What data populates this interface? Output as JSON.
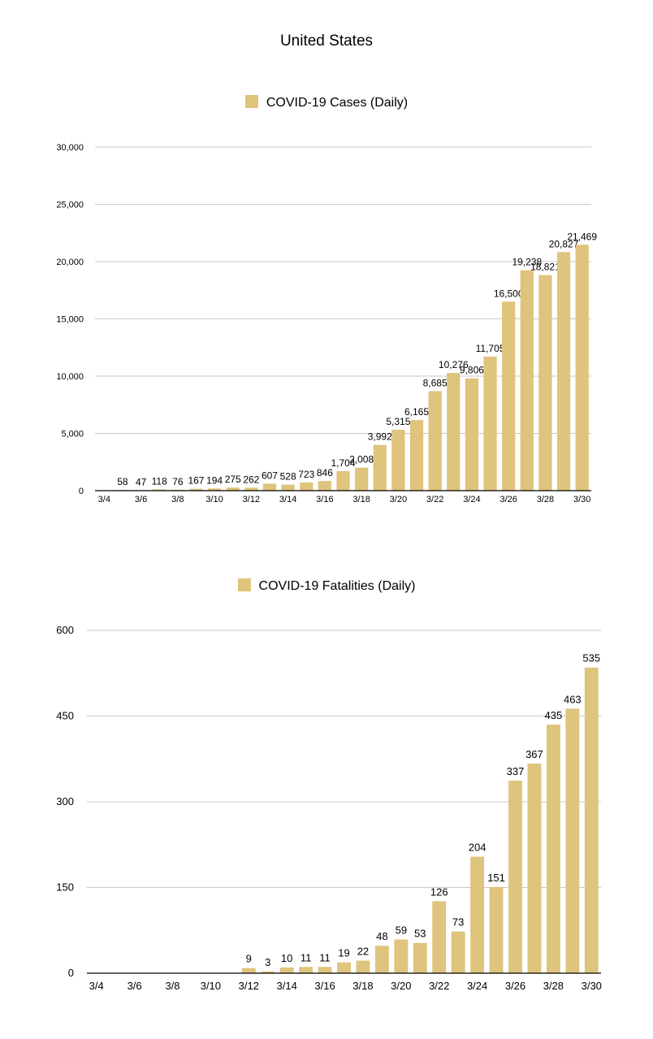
{
  "title": "United States",
  "colors": {
    "bar": "#dfc47d",
    "grid": "#c8c8c8",
    "axis": "#000000"
  },
  "chart_data": [
    {
      "type": "bar",
      "title": "United States",
      "legend": "COVID-19 Cases (Daily)",
      "legend_position": "top",
      "grid": true,
      "ylim": [
        0,
        30000
      ],
      "yticks": [
        "0",
        "5,000",
        "10,000",
        "15,000",
        "20,000",
        "25,000",
        "30,000"
      ],
      "categories": [
        "3/4",
        "3/5",
        "3/6",
        "3/7",
        "3/8",
        "3/9",
        "3/10",
        "3/11",
        "3/12",
        "3/13",
        "3/14",
        "3/15",
        "3/16",
        "3/17",
        "3/18",
        "3/19",
        "3/20",
        "3/21",
        "3/22",
        "3/23",
        "3/24",
        "3/25",
        "3/26",
        "3/27",
        "3/28",
        "3/29",
        "3/30"
      ],
      "xtick_labels": [
        "3/4",
        "",
        "3/6",
        "",
        "3/8",
        "",
        "3/10",
        "",
        "3/12",
        "",
        "3/14",
        "",
        "3/16",
        "",
        "3/18",
        "",
        "3/20",
        "",
        "3/22",
        "",
        "3/24",
        "",
        "3/26",
        "",
        "3/28",
        "",
        "3/30"
      ],
      "values": [
        null,
        58,
        47,
        118,
        76,
        167,
        194,
        275,
        262,
        607,
        528,
        723,
        846,
        1704,
        2008,
        3992,
        5315,
        6165,
        8685,
        10276,
        9806,
        11705,
        16500,
        19238,
        18821,
        20827,
        21469
      ],
      "labels": [
        "",
        "58",
        "47",
        "118",
        "76",
        "167",
        "194",
        "275",
        "262",
        "607",
        "528",
        "723",
        "846",
        "1,704",
        "2,008",
        "3,992",
        "5,315",
        "6,165",
        "8,685",
        "10,276",
        "9,806",
        "11,705",
        "16,500",
        "19,238",
        "18,821",
        "20,827",
        "21,469"
      ]
    },
    {
      "type": "bar",
      "legend": "COVID-19 Fatalities (Daily)",
      "legend_position": "top",
      "grid": true,
      "ylim": [
        0,
        600
      ],
      "yticks": [
        "0",
        "150",
        "300",
        "450",
        "600"
      ],
      "categories": [
        "3/4",
        "3/5",
        "3/6",
        "3/7",
        "3/8",
        "3/9",
        "3/10",
        "3/11",
        "3/12",
        "3/13",
        "3/14",
        "3/15",
        "3/16",
        "3/17",
        "3/18",
        "3/19",
        "3/20",
        "3/21",
        "3/22",
        "3/23",
        "3/24",
        "3/25",
        "3/26",
        "3/27",
        "3/28",
        "3/29",
        "3/30"
      ],
      "xtick_labels": [
        "3/4",
        "",
        "3/6",
        "",
        "3/8",
        "",
        "3/10",
        "",
        "3/12",
        "",
        "3/14",
        "",
        "3/16",
        "",
        "3/18",
        "",
        "3/20",
        "",
        "3/22",
        "",
        "3/24",
        "",
        "3/26",
        "",
        "3/28",
        "",
        "3/30"
      ],
      "values": [
        null,
        null,
        null,
        null,
        null,
        null,
        null,
        null,
        9,
        3,
        10,
        11,
        11,
        19,
        22,
        48,
        59,
        53,
        126,
        73,
        204,
        151,
        337,
        367,
        435,
        463,
        535
      ],
      "labels": [
        "",
        "",
        "",
        "",
        "",
        "",
        "",
        "",
        "9",
        "3",
        "10",
        "11",
        "11",
        "19",
        "22",
        "48",
        "59",
        "53",
        "126",
        "73",
        "204",
        "151",
        "337",
        "367",
        "435",
        "463",
        "535"
      ]
    }
  ]
}
